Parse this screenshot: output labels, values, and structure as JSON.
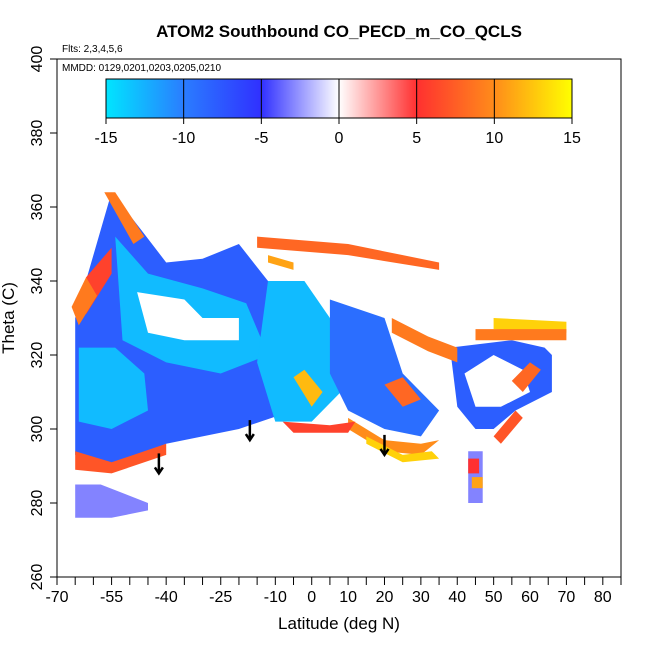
{
  "chart_data": {
    "type": "heatmap",
    "title": "ATOM2 Southbound CO_PECD_m_CO_QCLS",
    "flights_note": "Flts: 2,3,4,5,6",
    "dates_note": "MMDD: 0129,0201,0203,0205,0210",
    "xlabel": "Latitude (deg N)",
    "ylabel": "Theta (C)",
    "xlim": [
      -70,
      85
    ],
    "ylim": [
      260,
      400
    ],
    "x_ticks": [
      -70,
      -55,
      -40,
      -25,
      -10,
      0,
      10,
      20,
      30,
      40,
      50,
      60,
      70,
      80
    ],
    "x_minor_ticks": [
      -65,
      -60,
      -50,
      -45,
      -35,
      -30,
      -20,
      -15,
      -5,
      5,
      15,
      25,
      35,
      45,
      55,
      65,
      75,
      85
    ],
    "y_ticks": [
      260,
      280,
      300,
      320,
      340,
      360,
      380,
      400
    ],
    "colorbar": {
      "min": -15,
      "max": 15,
      "ticks": [
        -15,
        -10,
        -5,
        0,
        5,
        10,
        15
      ],
      "colors": [
        "#00e5ff",
        "#2a7dff",
        "#3030ff",
        "#ffffff",
        "#ff3030",
        "#ff8c1a",
        "#ffff00"
      ]
    },
    "arrows": [
      {
        "lat": -42,
        "theta": 288
      },
      {
        "lat": -17,
        "theta": 297
      },
      {
        "lat": 20,
        "theta": 293
      }
    ],
    "regions": [
      {
        "value": -8,
        "poly": [
          [
            -65,
            330
          ],
          [
            -55,
            364
          ],
          [
            -47,
            354
          ],
          [
            -40,
            345
          ],
          [
            -30,
            346
          ],
          [
            -20,
            350
          ],
          [
            -12,
            340
          ],
          [
            -5,
            340
          ],
          [
            -5,
            305
          ],
          [
            -20,
            300
          ],
          [
            -40,
            296
          ],
          [
            -55,
            290
          ],
          [
            -65,
            293
          ]
        ]
      },
      {
        "value": -13,
        "poly": [
          [
            -54,
            352
          ],
          [
            -45,
            342
          ],
          [
            -30,
            338
          ],
          [
            -18,
            334
          ],
          [
            -12,
            320
          ],
          [
            -25,
            315
          ],
          [
            -40,
            318
          ],
          [
            -52,
            324
          ]
        ]
      },
      {
        "value": 0,
        "poly": [
          [
            -48,
            337
          ],
          [
            -35,
            335
          ],
          [
            -30,
            330
          ],
          [
            -20,
            330
          ],
          [
            -20,
            324
          ],
          [
            -35,
            324
          ],
          [
            -45,
            326
          ]
        ]
      },
      {
        "value": -13,
        "poly": [
          [
            -64,
            322
          ],
          [
            -54,
            322
          ],
          [
            -46,
            315
          ],
          [
            -45,
            305
          ],
          [
            -55,
            300
          ],
          [
            -64,
            302
          ]
        ]
      },
      {
        "value": -13,
        "poly": [
          [
            -12,
            340
          ],
          [
            -2,
            340
          ],
          [
            5,
            330
          ],
          [
            8,
            310
          ],
          [
            0,
            302
          ],
          [
            -10,
            302
          ],
          [
            -15,
            318
          ]
        ]
      },
      {
        "value": -9,
        "poly": [
          [
            5,
            335
          ],
          [
            20,
            330
          ],
          [
            25,
            315
          ],
          [
            30,
            310
          ],
          [
            35,
            305
          ],
          [
            30,
            298
          ],
          [
            20,
            300
          ],
          [
            10,
            305
          ],
          [
            5,
            315
          ]
        ]
      },
      {
        "value": -8,
        "poly": [
          [
            38,
            322
          ],
          [
            55,
            324
          ],
          [
            64,
            322
          ],
          [
            66,
            320
          ],
          [
            66,
            310
          ],
          [
            56,
            305
          ],
          [
            50,
            300
          ],
          [
            45,
            300
          ],
          [
            40,
            306
          ]
        ]
      },
      {
        "value": 0,
        "poly": [
          [
            42,
            315
          ],
          [
            50,
            320
          ],
          [
            58,
            316
          ],
          [
            60,
            310
          ],
          [
            52,
            306
          ],
          [
            45,
            306
          ]
        ]
      },
      {
        "value": -3,
        "poly": [
          [
            -65,
            285
          ],
          [
            -58,
            285
          ],
          [
            -45,
            280
          ],
          [
            -45,
            278
          ],
          [
            -55,
            276
          ],
          [
            -65,
            276
          ]
        ]
      },
      {
        "value": -3,
        "poly": [
          [
            43,
            294
          ],
          [
            47,
            294
          ],
          [
            47,
            280
          ],
          [
            43,
            280
          ]
        ]
      },
      {
        "value": 6,
        "poly": [
          [
            -62,
            341
          ],
          [
            -55,
            349
          ],
          [
            -55,
            342
          ],
          [
            -62,
            331
          ]
        ]
      },
      {
        "value": 9,
        "poly": [
          [
            -57,
            364
          ],
          [
            -54,
            364
          ],
          [
            -46,
            352
          ],
          [
            -49,
            350
          ]
        ]
      },
      {
        "value": 9,
        "poly": [
          [
            -66,
            333
          ],
          [
            -62,
            341
          ],
          [
            -59,
            336
          ],
          [
            -64,
            328
          ]
        ]
      },
      {
        "value": 7,
        "poly": [
          [
            -65,
            294
          ],
          [
            -55,
            291
          ],
          [
            -40,
            296
          ],
          [
            -40,
            293
          ],
          [
            -55,
            288
          ],
          [
            -65,
            289
          ]
        ]
      },
      {
        "value": 8,
        "poly": [
          [
            -15,
            352
          ],
          [
            10,
            350
          ],
          [
            35,
            345
          ],
          [
            35,
            343
          ],
          [
            10,
            347
          ],
          [
            -15,
            349
          ]
        ]
      },
      {
        "value": 11,
        "poly": [
          [
            -12,
            347
          ],
          [
            -5,
            345
          ],
          [
            -5,
            343
          ],
          [
            -12,
            345
          ]
        ]
      },
      {
        "value": 9,
        "poly": [
          [
            22,
            330
          ],
          [
            32,
            325
          ],
          [
            40,
            322
          ],
          [
            40,
            318
          ],
          [
            32,
            321
          ],
          [
            22,
            326
          ]
        ]
      },
      {
        "value": 13,
        "poly": [
          [
            50,
            330
          ],
          [
            70,
            329
          ],
          [
            70,
            326
          ],
          [
            50,
            327
          ]
        ]
      },
      {
        "value": 9,
        "poly": [
          [
            45,
            327
          ],
          [
            70,
            327
          ],
          [
            70,
            324
          ],
          [
            45,
            324
          ]
        ]
      },
      {
        "value": 8,
        "poly": [
          [
            55,
            313
          ],
          [
            60,
            318
          ],
          [
            63,
            316
          ],
          [
            58,
            310
          ]
        ]
      },
      {
        "value": 10,
        "poly": [
          [
            10,
            300
          ],
          [
            20,
            294
          ],
          [
            30,
            293
          ],
          [
            35,
            297
          ],
          [
            30,
            296
          ],
          [
            20,
            297
          ],
          [
            10,
            303
          ]
        ]
      },
      {
        "value": 13,
        "poly": [
          [
            15,
            296
          ],
          [
            25,
            291
          ],
          [
            35,
            292
          ],
          [
            33,
            294
          ],
          [
            25,
            293
          ],
          [
            15,
            298
          ]
        ]
      },
      {
        "value": 8,
        "poly": [
          [
            20,
            312
          ],
          [
            25,
            306
          ],
          [
            30,
            308
          ],
          [
            25,
            314
          ]
        ]
      },
      {
        "value": 7,
        "poly": [
          [
            50,
            298
          ],
          [
            56,
            305
          ],
          [
            58,
            303
          ],
          [
            52,
            296
          ]
        ]
      },
      {
        "value": 12,
        "poly": [
          [
            -5,
            314
          ],
          [
            0,
            306
          ],
          [
            3,
            310
          ],
          [
            -2,
            316
          ]
        ]
      },
      {
        "value": 6,
        "poly": [
          [
            -8,
            302
          ],
          [
            5,
            301
          ],
          [
            12,
            302
          ],
          [
            10,
            299
          ],
          [
            -5,
            299
          ]
        ]
      },
      {
        "value": 5,
        "poly": [
          [
            43,
            292
          ],
          [
            46,
            292
          ],
          [
            46,
            288
          ],
          [
            43,
            288
          ]
        ]
      },
      {
        "value": 11,
        "poly": [
          [
            44,
            287
          ],
          [
            47,
            287
          ],
          [
            47,
            284
          ],
          [
            44,
            284
          ]
        ]
      }
    ]
  }
}
